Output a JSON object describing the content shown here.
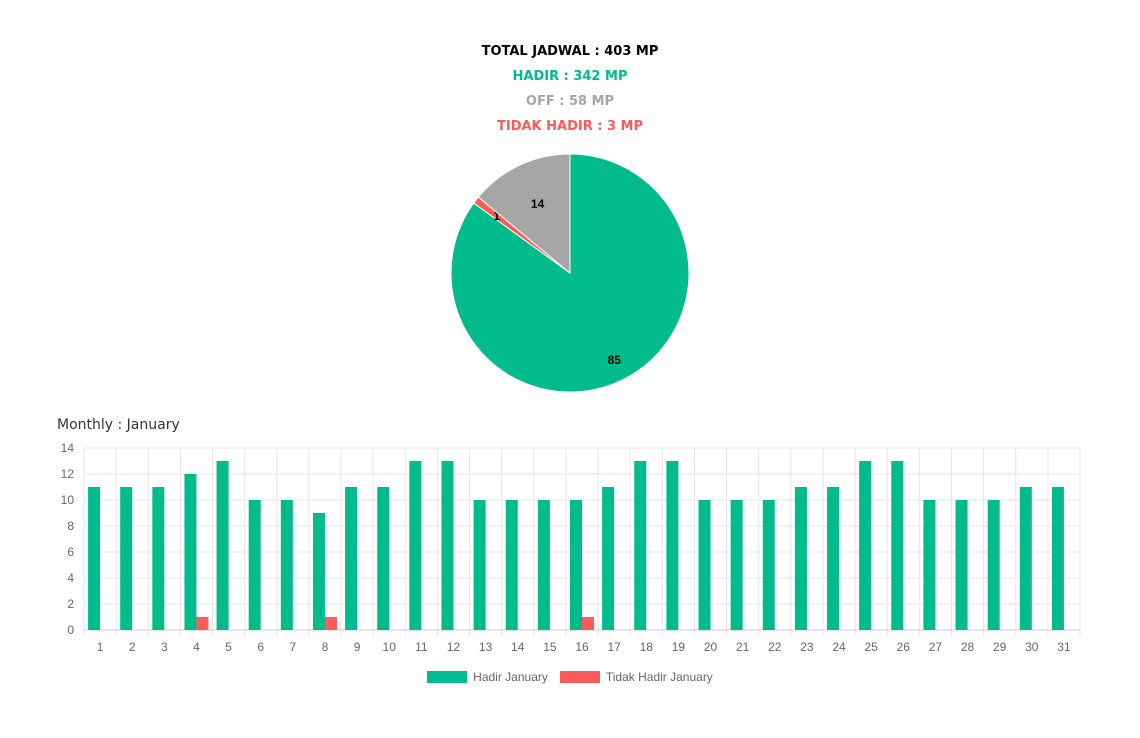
{
  "summary": {
    "total": "TOTAL JADWAL : 403 MP",
    "hadir": "HADIR : 342 MP",
    "off": "OFF : 58 MP",
    "tidak_hadir": "TIDAK HADIR : 3 MP"
  },
  "colors": {
    "total": "#000000",
    "hadir": "#00bc8c",
    "off": "#a6a6a6",
    "tidak_hadir": "#ff5a5a",
    "grid": "#e6e6e6",
    "axis_text": "#666666"
  },
  "monthly_title": "Monthly : January",
  "chart_data": [
    {
      "type": "pie",
      "categories": [
        "Hadir",
        "Tidak Hadir",
        "Off"
      ],
      "values": [
        85,
        1,
        14
      ],
      "colors": [
        "#00bc8c",
        "#ff5a5a",
        "#a6a6a6"
      ],
      "labels": [
        "85",
        "1",
        "14"
      ]
    },
    {
      "type": "bar",
      "title": "Monthly : January",
      "categories": [
        "1",
        "2",
        "3",
        "4",
        "5",
        "6",
        "7",
        "8",
        "9",
        "10",
        "11",
        "12",
        "13",
        "14",
        "15",
        "16",
        "17",
        "18",
        "19",
        "20",
        "21",
        "22",
        "23",
        "24",
        "25",
        "26",
        "27",
        "28",
        "29",
        "30",
        "31"
      ],
      "series": [
        {
          "name": "Hadir January",
          "color": "#00bc8c",
          "values": [
            11,
            11,
            11,
            12,
            13,
            10,
            10,
            9,
            11,
            11,
            13,
            13,
            10,
            10,
            10,
            10,
            11,
            13,
            13,
            10,
            10,
            10,
            11,
            11,
            13,
            13,
            10,
            10,
            10,
            11,
            11
          ]
        },
        {
          "name": "Tidak Hadir January",
          "color": "#ff5a5a",
          "values": [
            0,
            0,
            0,
            1,
            0,
            0,
            0,
            1,
            0,
            0,
            0,
            0,
            0,
            0,
            0,
            1,
            0,
            0,
            0,
            0,
            0,
            0,
            0,
            0,
            0,
            0,
            0,
            0,
            0,
            0,
            0
          ]
        }
      ],
      "yticks": [
        "0",
        "2",
        "4",
        "6",
        "8",
        "10",
        "12",
        "14"
      ],
      "ylim": [
        0,
        14
      ],
      "grid": true,
      "legend": "bottom"
    }
  ]
}
